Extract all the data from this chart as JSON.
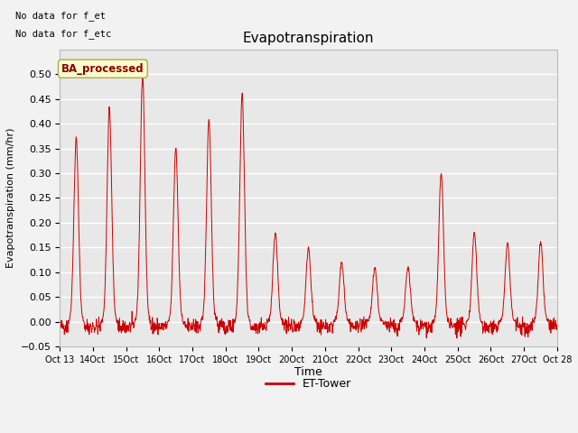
{
  "title": "Evapotranspiration",
  "ylabel": "Evapotranspiration (mm/hr)",
  "xlabel": "Time",
  "top_left_text_line1": "No data for f_et",
  "top_left_text_line2": "No data for f_etc",
  "legend_label": "ET-Tower",
  "legend_box_label": "BA_processed",
  "ylim": [
    -0.05,
    0.55
  ],
  "yticks": [
    -0.05,
    0.0,
    0.05,
    0.1,
    0.15,
    0.2,
    0.25,
    0.3,
    0.35,
    0.4,
    0.45,
    0.5
  ],
  "line_color": "#cc0000",
  "fig_bg": "#f2f2f2",
  "plot_bg": "#e8e8e8",
  "grid_color": "#ffffff",
  "peaks": [
    0.37,
    0.43,
    0.5,
    0.35,
    0.41,
    0.46,
    0.18,
    0.15,
    0.12,
    0.11,
    0.11,
    0.3,
    0.18,
    0.16,
    0.16
  ],
  "n_per_day": 96,
  "n_days": 15,
  "start_day": 13
}
